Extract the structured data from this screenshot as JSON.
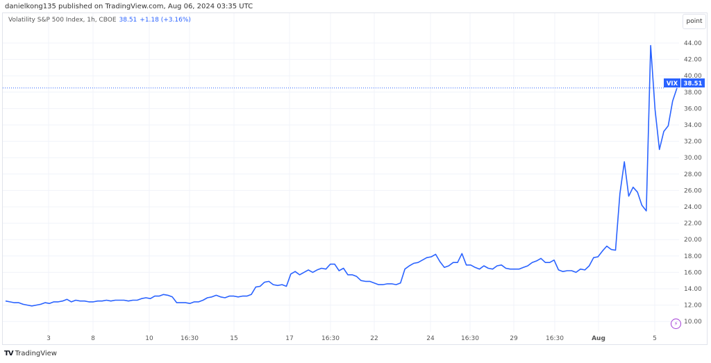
{
  "header": {
    "published": "danielkong135 published on TradingView.com, Aug 06, 2024 03:35 UTC"
  },
  "legend": {
    "symbol": "Volatility S&P 500 Index, 1h, CBOE",
    "last": "38.51",
    "change": "+1.18 (+3.16%)"
  },
  "toolbar": {
    "point_label": "point"
  },
  "price_label": {
    "ticker": "VIX",
    "value": "38.51"
  },
  "footer": {
    "logo": "TV",
    "brand": "TradingView"
  },
  "colors": {
    "line": "#2962ff",
    "grid": "#f0f3fa",
    "price_line": "#2962ff",
    "alert_icon": "#a33dd6"
  },
  "icons": {
    "alert": "lightning-bolt-icon"
  },
  "chart_data": {
    "type": "line",
    "title": "Volatility S&P 500 Index, 1h, CBOE",
    "grid": true,
    "ylim": [
      9.2,
      46
    ],
    "y_ticks": [
      "10.00",
      "12.00",
      "14.00",
      "16.00",
      "18.00",
      "20.00",
      "22.00",
      "24.00",
      "26.00",
      "28.00",
      "30.00",
      "32.00",
      "34.00",
      "36.00",
      "38.00",
      "40.00",
      "42.00",
      "44.00"
    ],
    "x_ticks": [
      "3",
      "8",
      "10",
      "16:30",
      "15",
      "17",
      "16:30",
      "22",
      "24",
      "16:30",
      "29",
      "16:30",
      "Aug",
      "5"
    ],
    "series": [
      {
        "values": [
          12.5,
          12.4,
          12.3,
          12.3,
          12.1,
          12.0,
          11.9,
          12.0,
          12.1,
          12.3,
          12.2,
          12.4,
          12.4,
          12.5,
          12.7,
          12.4,
          12.6,
          12.5,
          12.5,
          12.4,
          12.4,
          12.5,
          12.5,
          12.6,
          12.5,
          12.6,
          12.6,
          12.6,
          12.5,
          12.6,
          12.6,
          12.8,
          12.9,
          12.8,
          13.1,
          13.1,
          13.3,
          13.2,
          13.0,
          12.3,
          12.3,
          12.3,
          12.2,
          12.4,
          12.4,
          12.6,
          12.9,
          13.0,
          13.2,
          13.0,
          12.9,
          13.1,
          13.1,
          13.0,
          13.1,
          13.1,
          13.3,
          14.2,
          14.3,
          14.8,
          14.9,
          14.5,
          14.4,
          14.5,
          14.3,
          15.8,
          16.1,
          15.7,
          16.0,
          16.3,
          16.0,
          16.3,
          16.5,
          16.4,
          17.0,
          17.0,
          16.2,
          16.5,
          15.7,
          15.7,
          15.5,
          15.0,
          14.9,
          14.9,
          14.7,
          14.5,
          14.5,
          14.6,
          14.6,
          14.5,
          14.7,
          16.4,
          16.8,
          17.1,
          17.2,
          17.5,
          17.8,
          17.9,
          18.2,
          17.3,
          16.6,
          16.8,
          17.2,
          17.2,
          18.3,
          16.9,
          16.9,
          16.6,
          16.4,
          16.8,
          16.5,
          16.4,
          16.8,
          16.9,
          16.5,
          16.4,
          16.4,
          16.4,
          16.6,
          16.8,
          17.2,
          17.4,
          17.7,
          17.2,
          17.2,
          17.5,
          16.3,
          16.1,
          16.2,
          16.2,
          16.0,
          16.4,
          16.3,
          16.8,
          17.8,
          17.9,
          18.6,
          19.2,
          18.8,
          18.7,
          25.6,
          29.5,
          25.3,
          26.4,
          25.8,
          24.2,
          23.5,
          43.7,
          35.9,
          31.0,
          33.2,
          33.9,
          36.9,
          38.51
        ],
        "last": 38.51
      }
    ]
  }
}
